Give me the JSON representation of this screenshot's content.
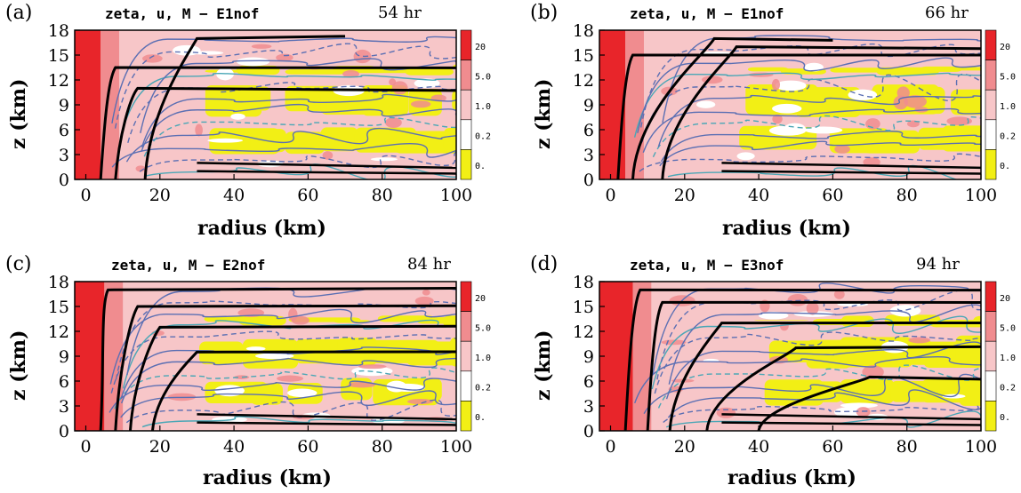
{
  "chart_data": [
    {
      "type": "contour",
      "panel_label": "(a)",
      "title": "zeta, u, M − E1nof",
      "time": "54 hr",
      "xlabel": "radius (km)",
      "ylabel": "z (km)",
      "xlim": [
        -3,
        100
      ],
      "ylim": [
        0,
        18
      ],
      "x_ticks": [
        0,
        20,
        40,
        60,
        80,
        100
      ],
      "y_ticks": [
        0,
        3,
        6,
        9,
        12,
        15,
        18
      ],
      "colorbar_labels": [
        "20",
        "5.0",
        "1.0",
        "0.2",
        "0."
      ],
      "M_contours": [
        {
          "r_bottom": 4,
          "r_top": 8,
          "z_turn": 13.5,
          "r_end": 100
        },
        {
          "r_bottom": 8,
          "r_top": 14,
          "z_turn": 11.0,
          "r_end": 100
        },
        {
          "r_bottom": 16,
          "r_top": 30,
          "z_turn": 17.0,
          "r_end": 70
        }
      ]
    },
    {
      "type": "contour",
      "panel_label": "(b)",
      "title": "zeta, u, M − E1nof",
      "time": "66 hr",
      "xlabel": "radius (km)",
      "ylabel": "z (km)",
      "xlim": [
        -3,
        100
      ],
      "ylim": [
        0,
        18
      ],
      "x_ticks": [
        0,
        20,
        40,
        60,
        80,
        100
      ],
      "y_ticks": [
        0,
        3,
        6,
        9,
        12,
        15,
        18
      ],
      "colorbar_labels": [
        "20",
        "5.0",
        "1.0",
        "0.2",
        "0."
      ],
      "M_contours": [
        {
          "r_bottom": 2,
          "r_top": 6,
          "z_turn": 15.0,
          "r_end": 100
        },
        {
          "r_bottom": 6,
          "r_top": 28,
          "z_turn": 17.0,
          "r_end": 60
        },
        {
          "r_bottom": 14,
          "r_top": 34,
          "z_turn": 16.0,
          "r_end": 100
        }
      ]
    },
    {
      "type": "contour",
      "panel_label": "(c)",
      "title": "zeta, u, M − E2nof",
      "time": "84 hr",
      "xlabel": "radius (km)",
      "ylabel": "z (km)",
      "xlim": [
        -3,
        100
      ],
      "ylim": [
        0,
        18
      ],
      "x_ticks": [
        0,
        20,
        40,
        60,
        80,
        100
      ],
      "y_ticks": [
        0,
        3,
        6,
        9,
        12,
        15,
        18
      ],
      "colorbar_labels": [
        "20",
        "5.0",
        "1.0",
        "0.2",
        "0."
      ],
      "M_contours": [
        {
          "r_bottom": 4,
          "r_top": 6,
          "z_turn": 17.0,
          "r_end": 100
        },
        {
          "r_bottom": 8,
          "r_top": 14,
          "z_turn": 15.0,
          "r_end": 100
        },
        {
          "r_bottom": 12,
          "r_top": 20,
          "z_turn": 12.5,
          "r_end": 100
        },
        {
          "r_bottom": 18,
          "r_top": 30,
          "z_turn": 9.5,
          "r_end": 100
        }
      ]
    },
    {
      "type": "contour",
      "panel_label": "(d)",
      "title": "zeta, u, M − E3nof",
      "time": "94 hr",
      "xlabel": "radius (km)",
      "ylabel": "z (km)",
      "xlim": [
        -3,
        100
      ],
      "ylim": [
        0,
        18
      ],
      "x_ticks": [
        0,
        20,
        40,
        60,
        80,
        100
      ],
      "y_ticks": [
        0,
        3,
        6,
        9,
        12,
        15,
        18
      ],
      "colorbar_labels": [
        "20",
        "5.0",
        "1.0",
        "0.2",
        "0."
      ],
      "M_contours": [
        {
          "r_bottom": 4,
          "r_top": 8,
          "z_turn": 17.0,
          "r_end": 100
        },
        {
          "r_bottom": 10,
          "r_top": 14,
          "z_turn": 15.5,
          "r_end": 100
        },
        {
          "r_bottom": 16,
          "r_top": 30,
          "z_turn": 13.0,
          "r_end": 100
        },
        {
          "r_bottom": 26,
          "r_top": 50,
          "z_turn": 10.0,
          "r_end": 100
        },
        {
          "r_bottom": 40,
          "r_top": 70,
          "z_turn": 6.5,
          "r_end": 100
        }
      ]
    }
  ],
  "colors": {
    "strong_vorticity": "#e8252a",
    "level_5": "#f08c8f",
    "level_1": "#f7c6c8",
    "level_02": "#ffffff",
    "level_0": "#f2ef15",
    "u_contour": "#5b6fb3",
    "u_contour_alt": "#4aa7b6",
    "M_contour": "#000000"
  }
}
